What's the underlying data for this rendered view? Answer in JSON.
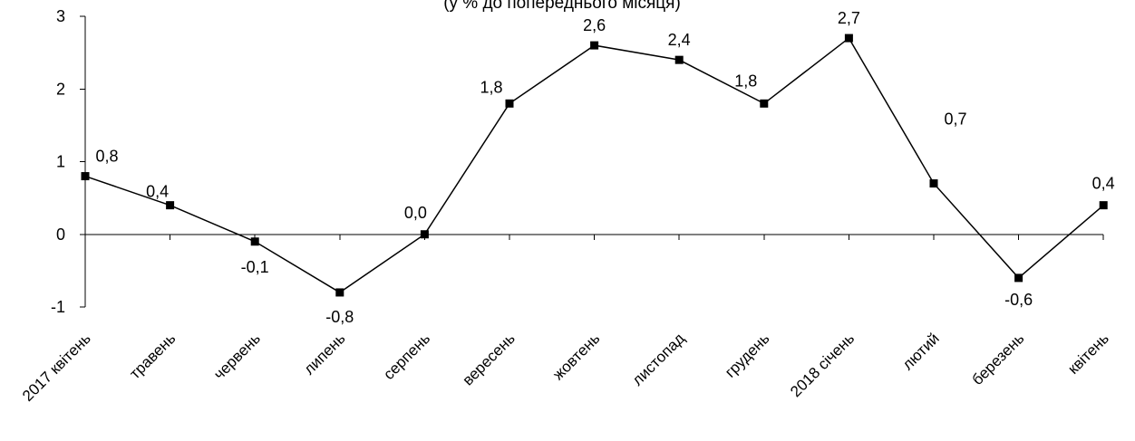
{
  "chart_data": {
    "type": "line",
    "subtitle": "(у % до попереднього місяця)",
    "categories": [
      "2017 квітень",
      "травень",
      "червень",
      "липень",
      "серпень",
      "вересень",
      "жовтень",
      "листопад",
      "грудень",
      "2018 січень",
      "лютий",
      "березень",
      "квітень"
    ],
    "series": [
      {
        "values": [
          0.8,
          0.4,
          -0.1,
          -0.8,
          0.0,
          1.8,
          2.6,
          2.4,
          1.8,
          2.7,
          0.7,
          -0.6,
          0.4
        ],
        "labels": [
          "0,8",
          "0,4",
          "-0,1",
          "-0,8",
          "0,0",
          "1,8",
          "2,6",
          "2,4",
          "1,8",
          "2,7",
          "0,7",
          "-0,6",
          "0,4"
        ]
      }
    ],
    "ylim": [
      -1,
      3
    ],
    "yticks": [
      -1,
      0,
      1,
      2,
      3
    ],
    "ytick_labels": [
      "-1",
      "0",
      "1",
      "2",
      "3"
    ],
    "grid": false,
    "line_color": "#000000",
    "marker": "square"
  }
}
